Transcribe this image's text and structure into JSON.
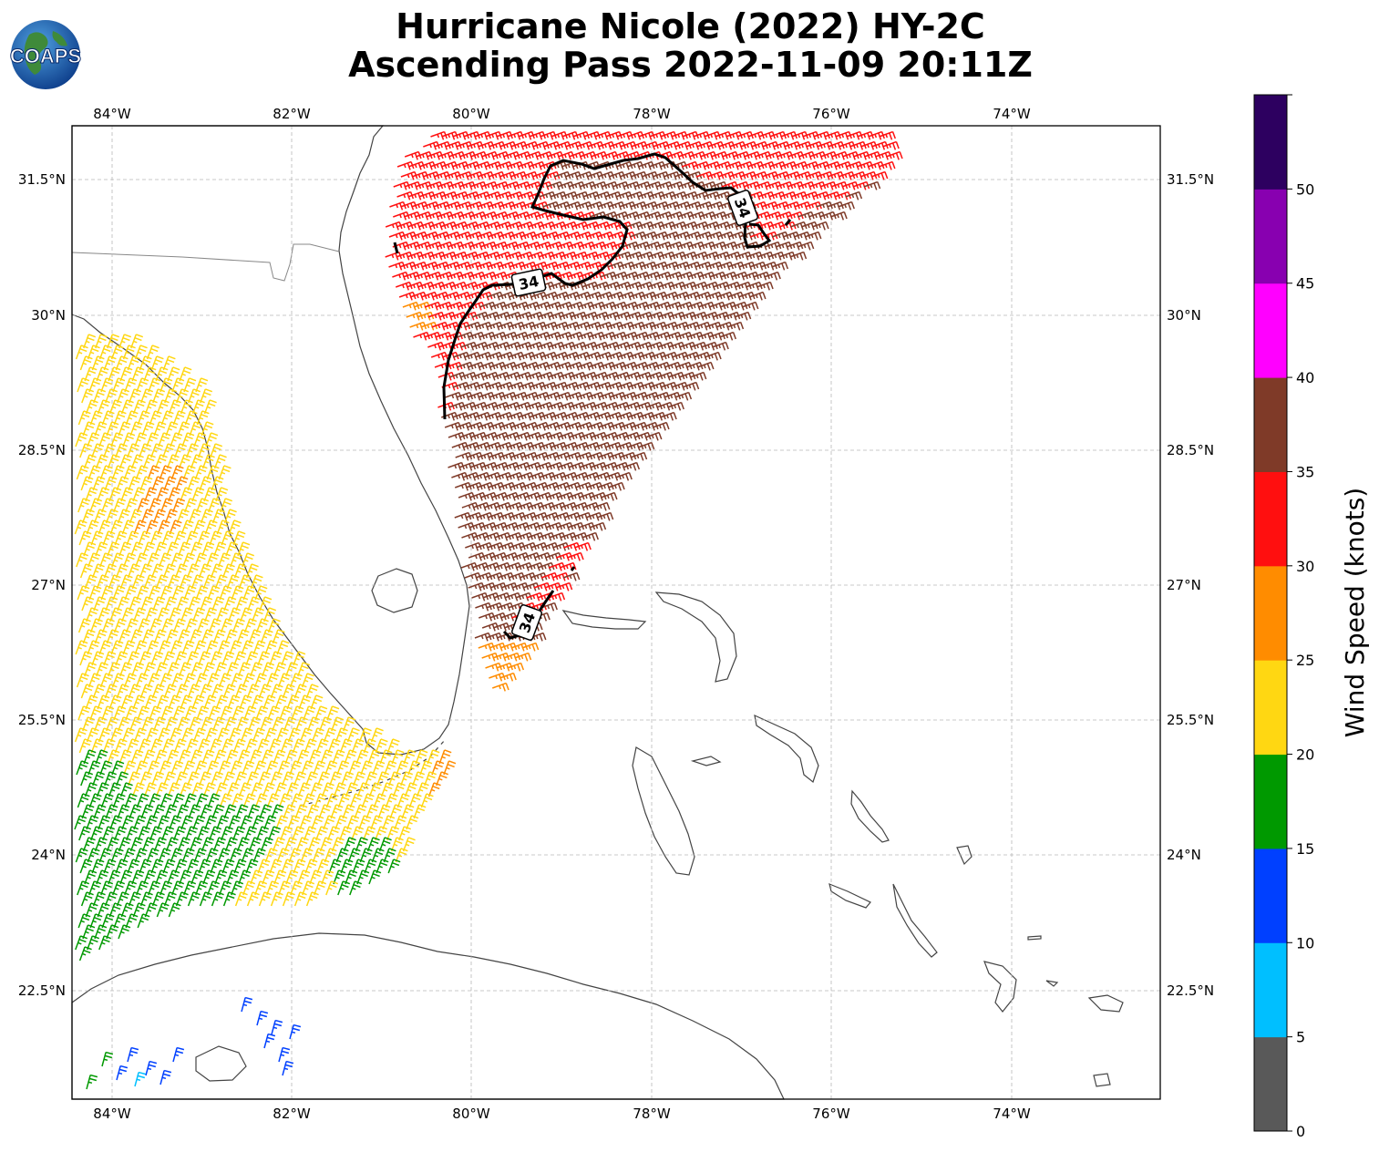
{
  "header": {
    "title_line1": "Hurricane Nicole (2022) HY-2C",
    "title_line2": "Ascending Pass 2022-11-09 20:11Z",
    "logo_text": "COAPS"
  },
  "map": {
    "lon_labels": [
      "84°W",
      "82°W",
      "80°W",
      "78°W",
      "76°W",
      "74°W"
    ],
    "lat_labels": [
      "31.5°N",
      "30°N",
      "28.5°N",
      "27°N",
      "25.5°N",
      "24°N",
      "22.5°N"
    ],
    "contour_label": "34",
    "contour_color": "#000000",
    "land_color": "#ffffff",
    "coast_color": "#444444",
    "grid": true
  },
  "colorbar": {
    "label": "Wind Speed (knots)",
    "ticks": [
      "0",
      "5",
      "10",
      "15",
      "20",
      "25",
      "30",
      "35",
      "40",
      "45",
      "50"
    ],
    "colors": [
      "#595959",
      "#00bfff",
      "#0040ff",
      "#009900",
      "#ffd712",
      "#ff8c00",
      "#ff0f0f",
      "#7f3a28",
      "#ff00ff",
      "#8800b0",
      "#2d0060"
    ]
  }
}
